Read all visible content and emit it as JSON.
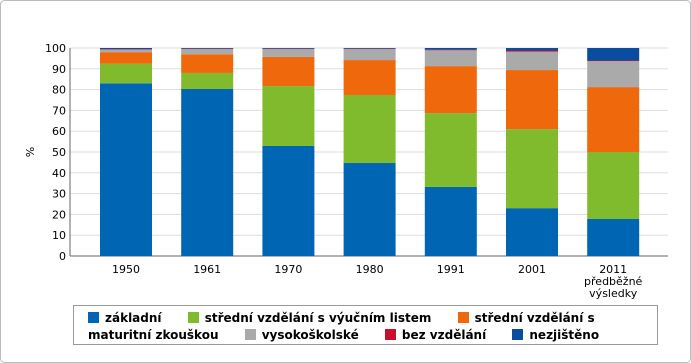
{
  "chart_data": {
    "type": "stacked_bar",
    "y_label": "%",
    "categories": [
      "1950",
      "1961",
      "1970",
      "1980",
      "1991",
      "2001",
      "2011 předběžné výsledky"
    ],
    "series": [
      {
        "name": "základní",
        "color": "#0066b3",
        "values": [
          83,
          80.3,
          52.9,
          44.7,
          33.2,
          23,
          17.8
        ]
      },
      {
        "name": "střední vzdělání s výučním listem",
        "color": "#80bb2e",
        "values": [
          9.5,
          7.7,
          28.8,
          32.7,
          35.5,
          38,
          32.2
        ]
      },
      {
        "name": "střední vzdělání s maturitní zkouškou",
        "color": "#f0680c",
        "values": [
          5.5,
          9,
          14,
          16.8,
          22.6,
          28.4,
          31.2
        ]
      },
      {
        "name": "vysokoškolské",
        "color": "#aaaaaa",
        "values": [
          1.3,
          2.5,
          3.8,
          5.3,
          7.6,
          8.9,
          12.5
        ]
      },
      {
        "name": "bez vzdělání",
        "color": "#c8102e",
        "values": [
          0.2,
          0.2,
          0.2,
          0.2,
          0.3,
          0.5,
          0.3
        ]
      },
      {
        "name": "nezjištěno",
        "color": "#0a4d9e",
        "values": [
          0.5,
          0.3,
          0.3,
          0.3,
          0.8,
          1.2,
          6
        ]
      }
    ],
    "ylim": [
      0,
      100
    ],
    "yticks": [
      0,
      10,
      20,
      30,
      40,
      50,
      60,
      70,
      80,
      90,
      100
    ],
    "grid": true
  }
}
